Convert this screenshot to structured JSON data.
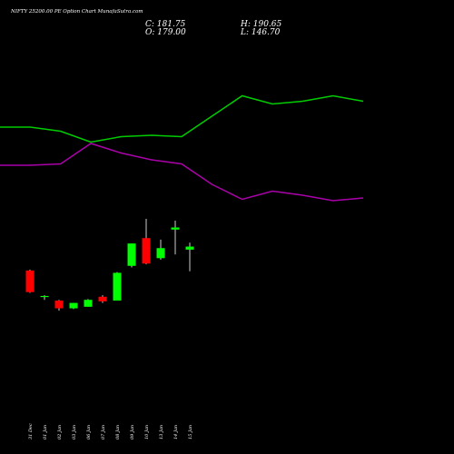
{
  "header": {
    "title": "NIFTY 25200.00  PE Option  Chart MunafaSutra.com",
    "close_label": "C: 181.75",
    "open_label": "O: 179.00",
    "high_label": "H: 190.65",
    "low_label": "L: 146.70"
  },
  "colors": {
    "background": "#000000",
    "up": "#00ff00",
    "down": "#ff0000",
    "line_green": "#00cc00",
    "line_purple": "#aa00aa",
    "text": "#ffffff"
  },
  "chart_data": [
    {
      "type": "line",
      "title": "",
      "series": [
        {
          "color": "#00cc00",
          "values": [
            60,
            60,
            57,
            49,
            53,
            54,
            53,
            68,
            83,
            77,
            79,
            83,
            79
          ]
        },
        {
          "color": "#aa00aa",
          "values": [
            32,
            32,
            33,
            48,
            41,
            36,
            33,
            18,
            7,
            13,
            10,
            6,
            8
          ]
        }
      ],
      "ylim": [
        0,
        90
      ]
    },
    {
      "type": "candlestick",
      "title": "",
      "categories": [
        "31 Dec",
        "01 Jan",
        "02 Jan",
        "03 Jan",
        "06 Jan",
        "07 Jan",
        "08 Jan",
        "09 Jan",
        "10 Jan",
        "13 Jan",
        "14 Jan",
        "15 Jan"
      ],
      "candles": [
        {
          "o": 126,
          "h": 127,
          "l": 97,
          "c": 98
        },
        {
          "o": 92,
          "h": 94,
          "l": 88,
          "c": 93
        },
        {
          "o": 87,
          "h": 88,
          "l": 74,
          "c": 77
        },
        {
          "o": 77,
          "h": 84,
          "l": 76,
          "c": 84
        },
        {
          "o": 79,
          "h": 89,
          "l": 79,
          "c": 88
        },
        {
          "o": 92,
          "h": 94,
          "l": 84,
          "c": 86
        },
        {
          "o": 87,
          "h": 124,
          "l": 87,
          "c": 123
        },
        {
          "o": 132,
          "h": 161,
          "l": 130,
          "c": 161
        },
        {
          "o": 168,
          "h": 193,
          "l": 134,
          "c": 135
        },
        {
          "o": 142,
          "h": 166,
          "l": 140,
          "c": 155
        },
        {
          "o": 179,
          "h": 190.65,
          "l": 146.7,
          "c": 181.75
        },
        {
          "o": 153,
          "h": 162,
          "l": 125,
          "c": 157
        }
      ],
      "ylim": [
        0,
        200
      ]
    }
  ]
}
